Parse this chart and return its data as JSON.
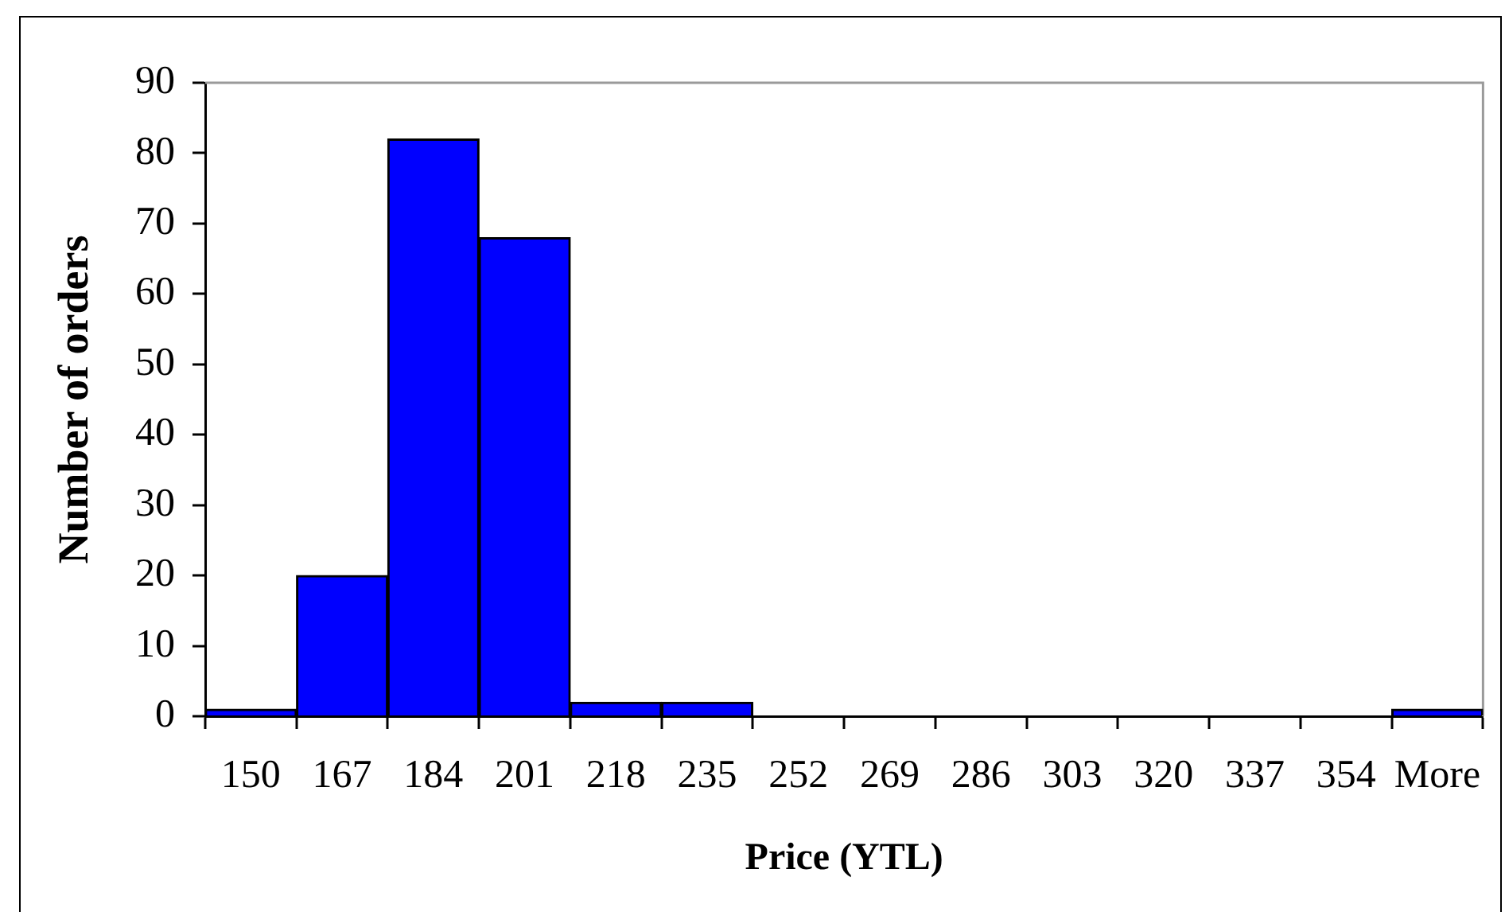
{
  "chart_data": {
    "type": "bar",
    "xlabel": "Price (YTL)",
    "ylabel": "Number of orders",
    "categories": [
      "150",
      "167",
      "184",
      "201",
      "218",
      "235",
      "252",
      "269",
      "286",
      "303",
      "320",
      "337",
      "354",
      "More"
    ],
    "values": [
      1,
      20,
      82,
      68,
      2,
      2,
      0,
      0,
      0,
      0,
      0,
      0,
      0,
      1
    ],
    "color": "#0000ff",
    "ylim": [
      0,
      90
    ],
    "yticks": [
      0,
      10,
      20,
      30,
      40,
      50,
      60,
      70,
      80,
      90
    ],
    "grid": false,
    "legend": false
  }
}
